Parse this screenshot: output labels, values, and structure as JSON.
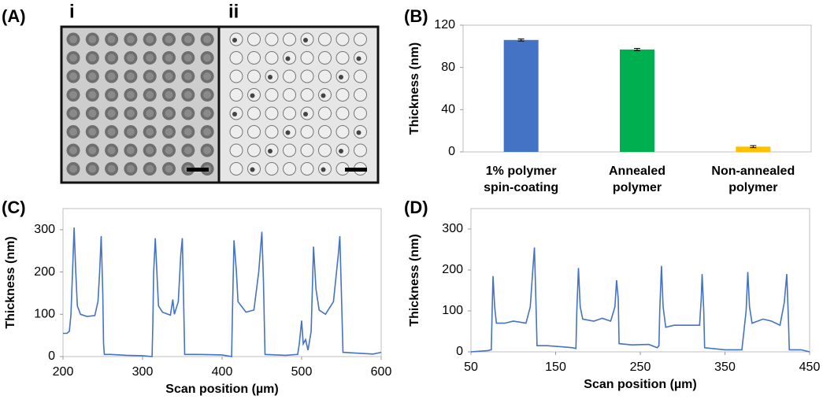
{
  "panel_a": {
    "label": "(A)",
    "sublabels": [
      "i",
      "ii"
    ]
  },
  "chart_data": [
    {
      "type": "bar",
      "panel_label": "(B)",
      "ylabel": "Thickness (nm)",
      "categories": [
        "1% polymer spin-coating",
        "Annealed polymer",
        "Non-annealed polymer"
      ],
      "values": [
        106,
        97,
        5
      ],
      "errors": [
        1,
        1,
        1
      ],
      "colors": [
        "#4472c4",
        "#00b050",
        "#ffc000"
      ],
      "ylim": [
        0,
        120
      ],
      "yticks": [
        0,
        40,
        80,
        120
      ]
    },
    {
      "type": "line",
      "panel_label": "(C)",
      "xlabel": "Scan position (µm)",
      "ylabel": "Thickness (nm)",
      "x": [
        200,
        205,
        208,
        210,
        212,
        214,
        216,
        218,
        222,
        230,
        240,
        244,
        246,
        248,
        250,
        251,
        252,
        260,
        280,
        300,
        312,
        313,
        314,
        316,
        318,
        320,
        325,
        335,
        338,
        340,
        345,
        348,
        350,
        352,
        353,
        370,
        400,
        412,
        413,
        415,
        418,
        420,
        430,
        440,
        446,
        450,
        452,
        454,
        480,
        495,
        497,
        500,
        502,
        505,
        508,
        512,
        515,
        518,
        522,
        530,
        540,
        546,
        548,
        550,
        552,
        570,
        590,
        600
      ],
      "series": [
        {
          "color": "#4472c4",
          "values": [
            55,
            55,
            60,
            100,
            200,
            305,
            200,
            120,
            100,
            95,
            97,
            130,
            200,
            285,
            150,
            30,
            5,
            5,
            3,
            2,
            0,
            80,
            200,
            280,
            200,
            120,
            105,
            98,
            135,
            100,
            130,
            240,
            280,
            100,
            5,
            5,
            4,
            0,
            100,
            275,
            200,
            130,
            105,
            110,
            200,
            295,
            180,
            5,
            3,
            5,
            30,
            85,
            30,
            40,
            15,
            60,
            260,
            160,
            110,
            100,
            130,
            240,
            285,
            150,
            10,
            8,
            6,
            10
          ]
        }
      ],
      "xlim": [
        200,
        600
      ],
      "xticks": [
        200,
        300,
        400,
        500,
        600
      ],
      "ylim": [
        0,
        350
      ],
      "yticks": [
        0,
        100,
        200,
        300
      ]
    },
    {
      "type": "line",
      "panel_label": "(D)",
      "xlabel": "Scan position (µm)",
      "ylabel": "Thickness (nm)",
      "x": [
        50,
        70,
        74,
        75,
        76,
        78,
        80,
        90,
        100,
        115,
        120,
        123,
        125,
        127,
        128,
        140,
        160,
        170,
        174,
        175,
        177,
        179,
        182,
        195,
        205,
        215,
        220,
        222,
        224,
        225,
        240,
        260,
        270,
        272,
        273,
        275,
        277,
        280,
        290,
        305,
        320,
        322,
        323,
        325,
        326,
        350,
        370,
        375,
        377,
        379,
        382,
        395,
        405,
        415,
        420,
        423,
        425,
        426,
        440,
        450
      ],
      "series": [
        {
          "color": "#4472c4",
          "values": [
            0,
            3,
            5,
            100,
            185,
            110,
            70,
            70,
            75,
            70,
            110,
            200,
            255,
            100,
            15,
            15,
            12,
            10,
            8,
            100,
            205,
            110,
            80,
            75,
            82,
            75,
            110,
            175,
            130,
            20,
            17,
            18,
            10,
            15,
            100,
            210,
            110,
            60,
            65,
            65,
            65,
            130,
            190,
            100,
            10,
            5,
            5,
            100,
            195,
            110,
            70,
            80,
            75,
            65,
            120,
            190,
            80,
            5,
            5,
            0
          ]
        }
      ],
      "xlim": [
        50,
        450
      ],
      "xticks": [
        50,
        150,
        250,
        350,
        450
      ],
      "ylim": [
        0,
        350
      ],
      "yticks": [
        0,
        100,
        200,
        300
      ]
    }
  ]
}
